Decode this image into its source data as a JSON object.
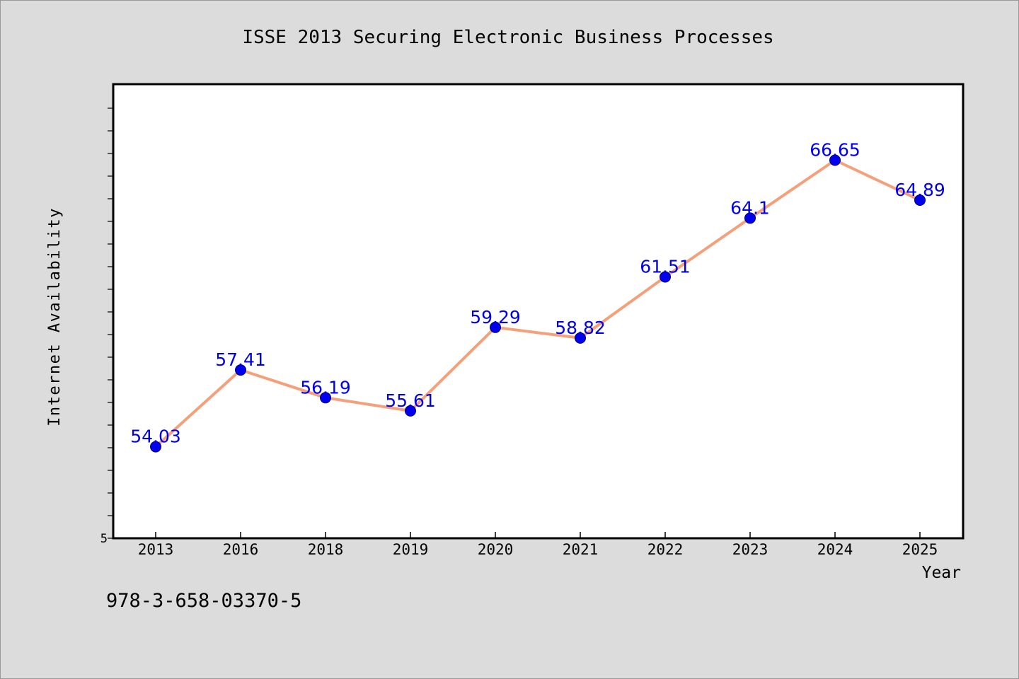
{
  "chart_data": {
    "type": "line",
    "title": "ISSE 2013 Securing Electronic Business Processes",
    "xlabel": "Year",
    "ylabel": "Internet Availability",
    "categories": [
      "2013",
      "2016",
      "2018",
      "2019",
      "2020",
      "2021",
      "2022",
      "2023",
      "2024",
      "2025"
    ],
    "values": [
      54.03,
      57.41,
      56.19,
      55.61,
      59.29,
      58.82,
      61.51,
      64.1,
      66.65,
      64.89
    ],
    "data_labels": [
      "54.03",
      "57.41",
      "56.19",
      "55.61",
      "59.29",
      "58.82",
      "61.51",
      "64.1",
      "66.65",
      "64.89"
    ],
    "y_tick_label": "5",
    "ylim": [
      50,
      70
    ],
    "grid": false,
    "legend": "none",
    "colors": {
      "line": "#f4a07a",
      "marker": "#0000ee",
      "label": "#0000ee",
      "background": "#dcdcdc",
      "plot_background": "#ffffff"
    }
  },
  "footer": {
    "isbn": "978-3-658-03370-5"
  }
}
